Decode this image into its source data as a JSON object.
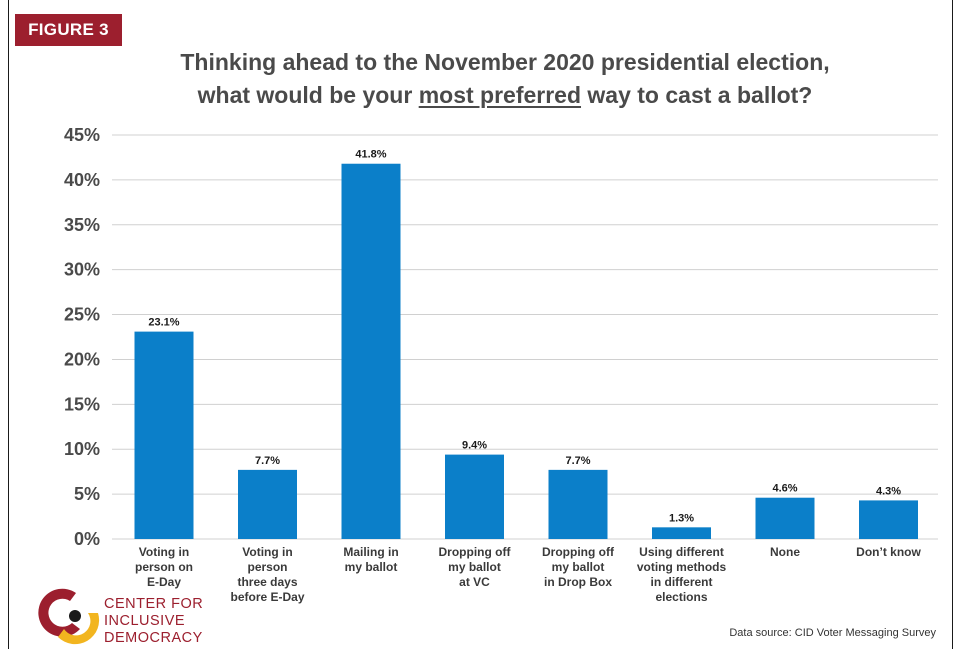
{
  "figure_label": "FIGURE 3",
  "title_line1": "Thinking ahead to the November 2020 presidential election,",
  "title_pre": "what would be your ",
  "title_emph": "most preferred",
  "title_post": " way to cast a ballot?",
  "source": "Data source: CID Voter Messaging Survey",
  "logo": {
    "line1": "Center for",
    "line2": "Inclusive",
    "line3": "Democracy"
  },
  "colors": {
    "bar": "#0b7fc9",
    "accent": "#9c1f2e",
    "logo_yellow": "#f2b51f",
    "grid": "#d0d0d0",
    "axis_text": "#4a4a4a"
  },
  "chart_data": {
    "type": "bar",
    "categories": [
      [
        "Voting in",
        "person on",
        "E-Day"
      ],
      [
        "Voting in",
        "person",
        "three days",
        "before E-Day"
      ],
      [
        "Mailing in",
        "my ballot"
      ],
      [
        "Dropping off",
        "my ballot",
        "at VC"
      ],
      [
        "Dropping off",
        "my ballot",
        "in Drop Box"
      ],
      [
        "Using different",
        "voting methods",
        "in different",
        "elections"
      ],
      [
        "None"
      ],
      [
        "Don’t know"
      ]
    ],
    "values": [
      23.1,
      7.7,
      41.8,
      9.4,
      7.7,
      1.3,
      4.6,
      4.3
    ],
    "data_labels": [
      "23.1%",
      "7.7%",
      "41.8%",
      "9.4%",
      "7.7%",
      "1.3%",
      "4.6%",
      "4.3%"
    ],
    "yticks": [
      "0%",
      "5%",
      "10%",
      "15%",
      "20%",
      "25%",
      "30%",
      "35%",
      "40%",
      "45%"
    ],
    "ylim": [
      0,
      45
    ],
    "grid": true,
    "legend": "none"
  }
}
